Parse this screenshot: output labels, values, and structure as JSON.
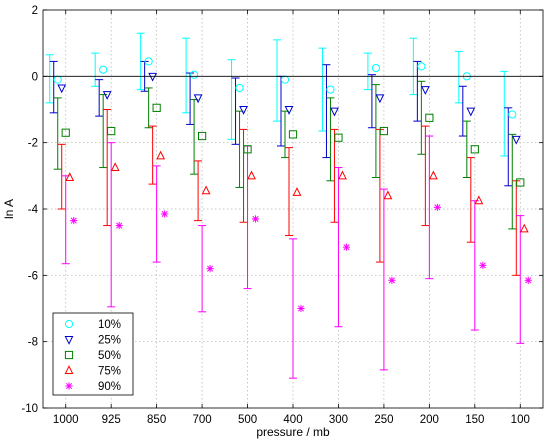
{
  "chart_data": {
    "type": "scatter",
    "title": "",
    "xlabel": "pressure / mb",
    "ylabel": "ln A",
    "categories": [
      "1000",
      "925",
      "850",
      "700",
      "500",
      "400",
      "300",
      "250",
      "200",
      "150",
      "100"
    ],
    "ylim": [
      -10,
      2
    ],
    "yticks": [
      "-10",
      "-8",
      "-6",
      "-4",
      "-2",
      "0",
      "2"
    ],
    "grid": true,
    "legend_position": "bottom-left",
    "reference_line_y": 0,
    "series": [
      {
        "name": "10%",
        "marker": "circle",
        "color": "#00ffff",
        "values": [
          -0.1,
          0.2,
          0.45,
          0.05,
          -0.35,
          -0.1,
          -0.4,
          0.25,
          0.3,
          0.0,
          -1.15
        ],
        "err_low": [
          -0.8,
          -0.3,
          -0.4,
          -1.1,
          -1.9,
          -1.35,
          -1.65,
          -0.4,
          -0.55,
          -0.8,
          -2.4
        ],
        "err_high": [
          0.65,
          0.7,
          1.3,
          1.15,
          0.5,
          1.1,
          0.85,
          0.7,
          1.15,
          0.75,
          0.15
        ]
      },
      {
        "name": "25%",
        "marker": "triangle-down",
        "color": "#0000cc",
        "values": [
          -0.35,
          -0.55,
          0.0,
          -0.65,
          -1.0,
          -1.0,
          -1.05,
          -0.65,
          -0.4,
          -1.05,
          -1.9
        ],
        "err_low": [
          -1.1,
          -1.2,
          -0.45,
          -1.45,
          -2.05,
          -2.1,
          -2.45,
          -1.55,
          -1.35,
          -1.8,
          -3.3
        ],
        "err_high": [
          0.45,
          -0.1,
          0.45,
          0.1,
          -0.05,
          0.0,
          0.35,
          0.05,
          0.45,
          -0.3,
          -0.95
        ]
      },
      {
        "name": "50%",
        "marker": "square",
        "color": "#008000",
        "values": [
          -1.7,
          -1.65,
          -0.95,
          -1.8,
          -2.2,
          -1.75,
          -1.85,
          -1.65,
          -1.25,
          -2.2,
          -3.2
        ],
        "err_low": [
          -2.8,
          -2.75,
          -1.55,
          -2.95,
          -3.35,
          -2.45,
          -3.15,
          -3.05,
          -2.35,
          -3.05,
          -4.6
        ],
        "err_high": [
          -0.65,
          -0.55,
          -0.35,
          -0.7,
          -1.05,
          -1.05,
          -0.65,
          -0.25,
          -0.15,
          -1.35,
          -1.75
        ]
      },
      {
        "name": "75%",
        "marker": "triangle-up",
        "color": "#ff0000",
        "values": [
          -3.05,
          -2.75,
          -2.4,
          -3.45,
          -3.0,
          -3.5,
          -3.0,
          -3.6,
          -3.0,
          -3.75,
          -4.6
        ],
        "err_low": [
          -4.0,
          -4.5,
          -3.25,
          -4.35,
          -4.4,
          -4.8,
          -4.4,
          -5.6,
          -4.5,
          -5.0,
          -6.0
        ],
        "err_high": [
          -2.05,
          -1.0,
          -1.5,
          -2.55,
          -1.6,
          -2.15,
          -1.6,
          -1.6,
          -1.5,
          -2.45,
          -3.15
        ]
      },
      {
        "name": "90%",
        "marker": "asterisk",
        "color": "#ff00ff",
        "values": [
          -4.35,
          -4.5,
          -4.15,
          -5.8,
          -4.3,
          -7.0,
          -5.15,
          -6.15,
          -3.95,
          -5.7,
          -6.15
        ],
        "err_low": [
          -5.65,
          -6.95,
          -5.6,
          -7.1,
          -6.4,
          -9.1,
          -7.55,
          -8.85,
          -6.1,
          -7.65,
          -8.05
        ],
        "err_high": [
          -3.0,
          -2.0,
          -2.7,
          -4.5,
          -2.1,
          -4.9,
          -2.75,
          -3.4,
          -1.8,
          -3.75,
          -4.2
        ]
      }
    ]
  }
}
